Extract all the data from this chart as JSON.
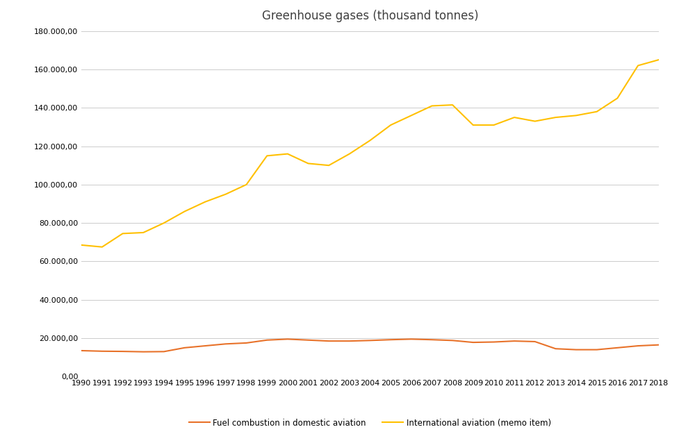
{
  "title": "Greenhouse gases (thousand tonnes)",
  "years": [
    1990,
    1991,
    1992,
    1993,
    1994,
    1995,
    1996,
    1997,
    1998,
    1999,
    2000,
    2001,
    2002,
    2003,
    2004,
    2005,
    2006,
    2007,
    2008,
    2009,
    2010,
    2011,
    2012,
    2013,
    2014,
    2015,
    2016,
    2017,
    2018
  ],
  "domestic": [
    13500,
    13200,
    13100,
    12900,
    13000,
    15000,
    16000,
    17000,
    17500,
    19000,
    19500,
    19000,
    18500,
    18500,
    18800,
    19200,
    19500,
    19200,
    18800,
    17800,
    18000,
    18500,
    18200,
    14500,
    14000,
    14000,
    15000,
    16000,
    16500
  ],
  "international": [
    68500,
    67500,
    74500,
    75000,
    80000,
    86000,
    91000,
    95000,
    100000,
    115000,
    116000,
    111000,
    110000,
    116000,
    123000,
    131000,
    136000,
    141000,
    141500,
    131000,
    131000,
    135000,
    133000,
    135000,
    136000,
    138000,
    145000,
    162000,
    165000
  ],
  "domestic_color": "#E8722A",
  "international_color": "#FFC000",
  "legend_domestic": "Fuel combustion in domestic aviation",
  "legend_international": "International aviation (memo item)",
  "ylim": [
    0,
    180000
  ],
  "yticks": [
    0,
    20000,
    40000,
    60000,
    80000,
    100000,
    120000,
    140000,
    160000,
    180000
  ],
  "background_color": "#ffffff",
  "grid_color": "#cccccc",
  "title_fontsize": 12,
  "tick_fontsize": 8,
  "legend_fontsize": 8.5,
  "title_color": "#404040"
}
